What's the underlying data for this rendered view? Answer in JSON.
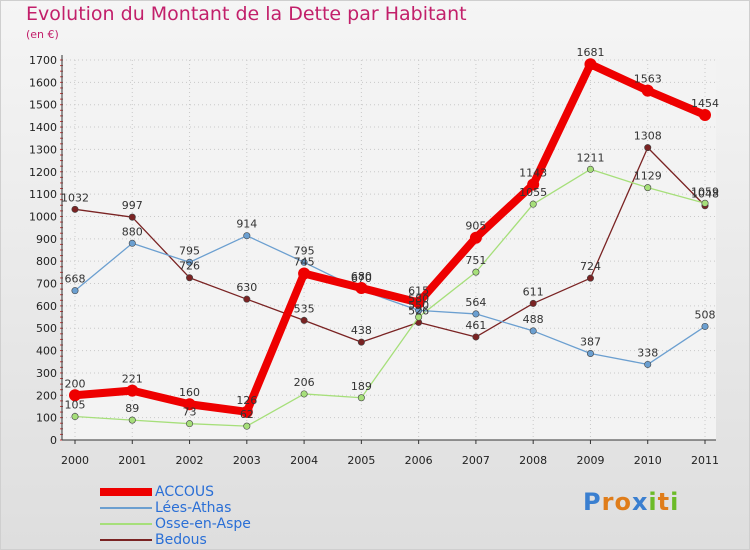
{
  "header": {
    "title": "Evolution du Montant de la Dette par Habitant",
    "subtitle": "(en €)"
  },
  "brand": {
    "letters": [
      "P",
      "r",
      "o",
      "x",
      "i",
      "t",
      "i"
    ],
    "colors": [
      "#3a7fd0",
      "#e07d1a",
      "#e07d1a",
      "#3a7fd0",
      "#6cbb28",
      "#e07d1a",
      "#6cbb28"
    ]
  },
  "chart_data": {
    "type": "line",
    "title": "Evolution du Montant de la Dette par Habitant",
    "ylabel": "(en €)",
    "xlabel": "",
    "x": [
      "2000",
      "2001",
      "2002",
      "2003",
      "2004",
      "2005",
      "2006",
      "2007",
      "2008",
      "2009",
      "2010",
      "2011"
    ],
    "ylim": [
      0,
      1700
    ],
    "yticks": [
      0,
      100,
      200,
      300,
      400,
      500,
      600,
      700,
      800,
      900,
      1000,
      1100,
      1200,
      1300,
      1400,
      1500,
      1600,
      1700
    ],
    "grid": true,
    "legend_position": "bottom-left",
    "series": [
      {
        "name": "Bedous",
        "color": "#7a2323",
        "values": [
          1032,
          997,
          726,
          630,
          535,
          438,
          526,
          461,
          611,
          724,
          1308,
          1048
        ]
      },
      {
        "name": "Osse-en-Aspe",
        "color": "#a6df7a",
        "values": [
          105,
          89,
          73,
          62,
          206,
          189,
          550,
          751,
          1055,
          1211,
          1129,
          1059
        ]
      },
      {
        "name": "Lées-Athas",
        "color": "#6b9fd0",
        "values": [
          668,
          880,
          795,
          914,
          795,
          670,
          580,
          564,
          488,
          387,
          338,
          508
        ]
      },
      {
        "name": "ACCOUS",
        "color": "#ee0000",
        "values": [
          200,
          221,
          160,
          126,
          745,
          680,
          615,
          905,
          1143,
          1681,
          1563,
          1454
        ]
      }
    ],
    "legend_order": [
      "ACCOUS",
      "Lées-Athas",
      "Osse-en-Aspe",
      "Bedous"
    ]
  }
}
